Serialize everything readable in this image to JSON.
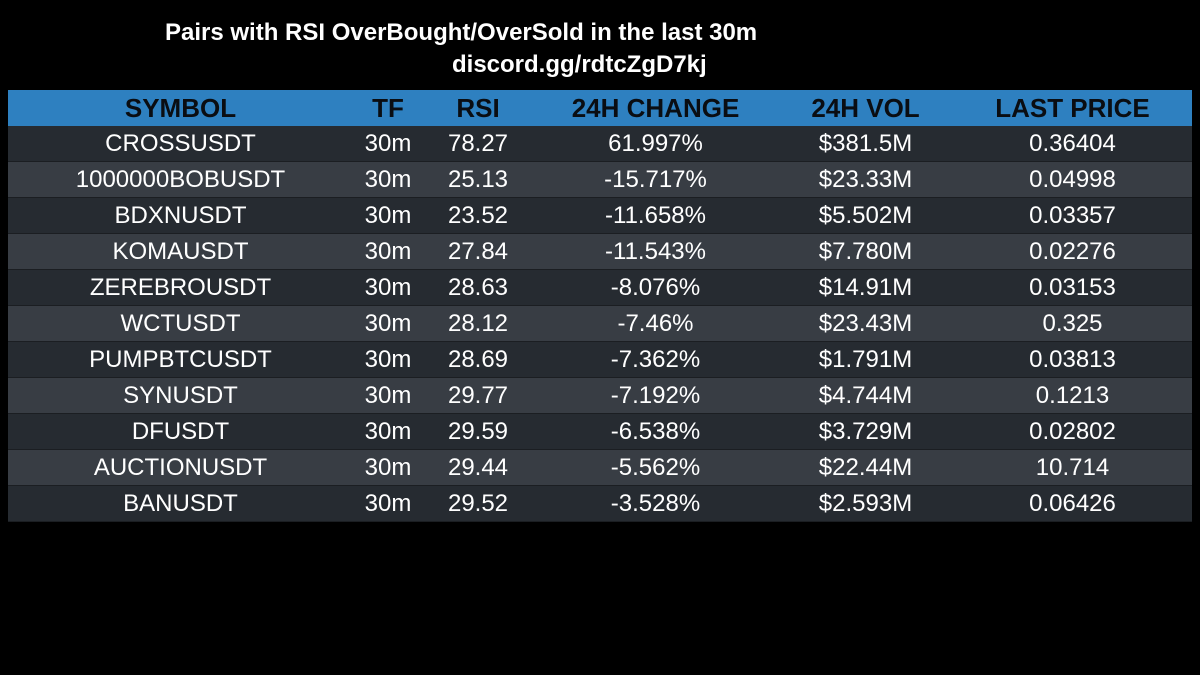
{
  "header": {
    "title": "Pairs with RSI OverBought/OverSold in the last 30m",
    "link": "discord.gg/rdtcZgD7kj"
  },
  "colors": {
    "header_bg": "#2e80c0",
    "row_dark": "#262b31",
    "row_light": "#383d44",
    "background": "#000000"
  },
  "table": {
    "columns": [
      "SYMBOL",
      "TF",
      "RSI",
      "24H CHANGE",
      "24H VOL",
      "LAST PRICE"
    ],
    "rows": [
      [
        "CROSSUSDT",
        "30m",
        "78.27",
        "61.997%",
        "$381.5M",
        "0.36404"
      ],
      [
        "1000000BOBUSDT",
        "30m",
        "25.13",
        "-15.717%",
        "$23.33M",
        "0.04998"
      ],
      [
        "BDXNUSDT",
        "30m",
        "23.52",
        "-11.658%",
        "$5.502M",
        "0.03357"
      ],
      [
        "KOMAUSDT",
        "30m",
        "27.84",
        "-11.543%",
        "$7.780M",
        "0.02276"
      ],
      [
        "ZEREBROUSDT",
        "30m",
        "28.63",
        "-8.076%",
        "$14.91M",
        "0.03153"
      ],
      [
        "WCTUSDT",
        "30m",
        "28.12",
        "-7.46%",
        "$23.43M",
        "0.325"
      ],
      [
        "PUMPBTCUSDT",
        "30m",
        "28.69",
        "-7.362%",
        "$1.791M",
        "0.03813"
      ],
      [
        "SYNUSDT",
        "30m",
        "29.77",
        "-7.192%",
        "$4.744M",
        "0.1213"
      ],
      [
        "DFUSDT",
        "30m",
        "29.59",
        "-6.538%",
        "$3.729M",
        "0.02802"
      ],
      [
        "AUCTIONUSDT",
        "30m",
        "29.44",
        "-5.562%",
        "$22.44M",
        "10.714"
      ],
      [
        "BANUSDT",
        "30m",
        "29.52",
        "-3.528%",
        "$2.593M",
        "0.06426"
      ]
    ]
  }
}
